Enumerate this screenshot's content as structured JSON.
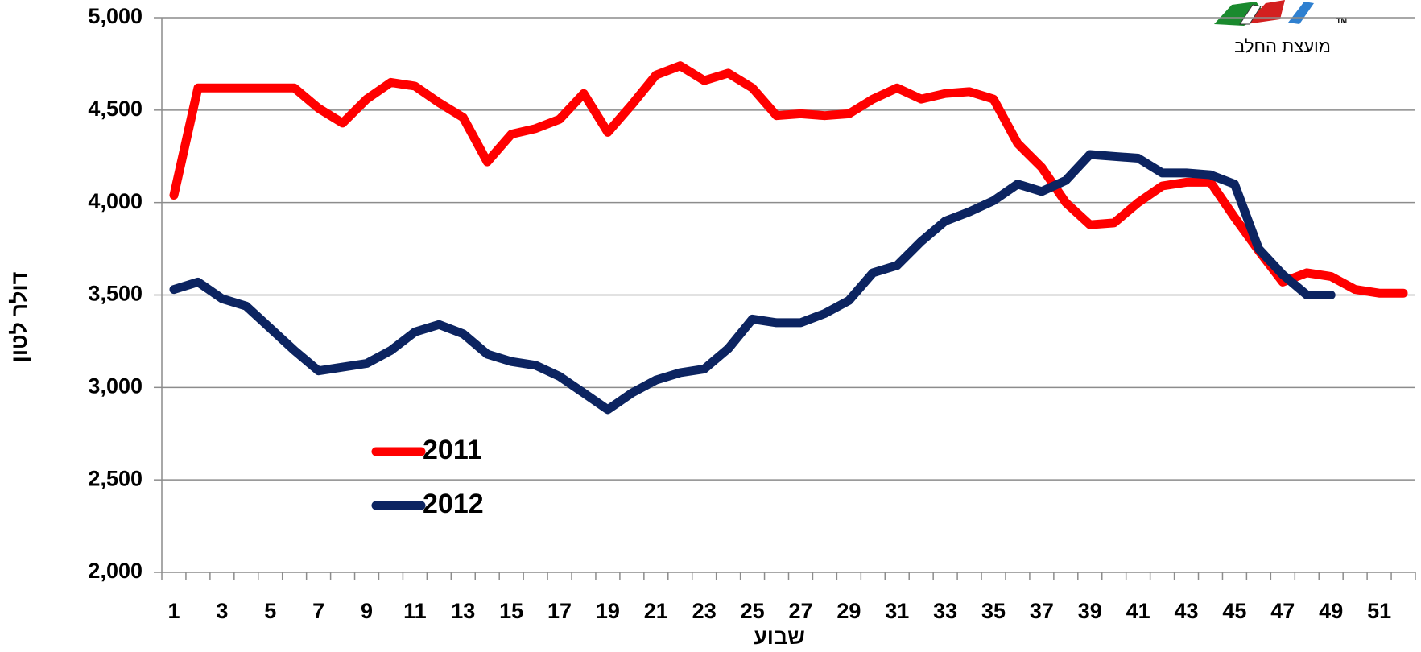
{
  "chart_data": {
    "type": "line",
    "y_label": "דולר לטון",
    "x_label": "שבוע",
    "logo_text": "מועצת החלב",
    "categories": [
      1,
      null,
      3,
      null,
      5,
      null,
      7,
      null,
      9,
      null,
      11,
      null,
      13,
      null,
      15,
      null,
      17,
      null,
      19,
      null,
      21,
      null,
      23,
      null,
      25,
      null,
      27,
      null,
      29,
      null,
      31,
      null,
      33,
      null,
      35,
      null,
      37,
      null,
      39,
      null,
      41,
      null,
      43,
      null,
      45,
      null,
      47,
      null,
      49,
      null,
      51,
      null
    ],
    "series": [
      {
        "name": "2011",
        "color": "#ff0000",
        "values": [
          4040,
          4620,
          4620,
          4620,
          4620,
          4620,
          4510,
          4430,
          4560,
          4650,
          4630,
          4540,
          4460,
          4220,
          4370,
          4400,
          4450,
          4590,
          4380,
          4530,
          4690,
          4740,
          4660,
          4700,
          4620,
          4470,
          4480,
          4470,
          4480,
          4560,
          4620,
          4560,
          4590,
          4600,
          4560,
          4320,
          4190,
          4000,
          3880,
          3890,
          4000,
          4090,
          4110,
          4110,
          3920,
          3740,
          3570,
          3620,
          3600,
          3530,
          3510,
          3510
        ]
      },
      {
        "name": "2012",
        "color": "#0c2461",
        "values": [
          3530,
          3570,
          3480,
          3440,
          3320,
          3200,
          3090,
          3110,
          3130,
          3200,
          3300,
          3340,
          3290,
          3180,
          3140,
          3120,
          3060,
          2970,
          2880,
          2970,
          3040,
          3080,
          3100,
          3210,
          3370,
          3350,
          3350,
          3400,
          3470,
          3620,
          3660,
          3790,
          3900,
          3950,
          4010,
          4100,
          4060,
          4120,
          4260,
          4250,
          4240,
          4160,
          4160,
          4150,
          4100,
          3750,
          3610,
          3500,
          3500,
          null,
          null,
          null
        ]
      }
    ],
    "ylim": [
      2000,
      5000
    ],
    "yticks": [
      {
        "value": 2000,
        "label": "2,000"
      },
      {
        "value": 2500,
        "label": "2,500"
      },
      {
        "value": 3000,
        "label": "3,000"
      },
      {
        "value": 3500,
        "label": "3,500"
      },
      {
        "value": 4000,
        "label": "4,000"
      },
      {
        "value": 4500,
        "label": "4,500"
      },
      {
        "value": 5000,
        "label": "5,000"
      }
    ],
    "grid": true,
    "legend": "lower-left"
  }
}
